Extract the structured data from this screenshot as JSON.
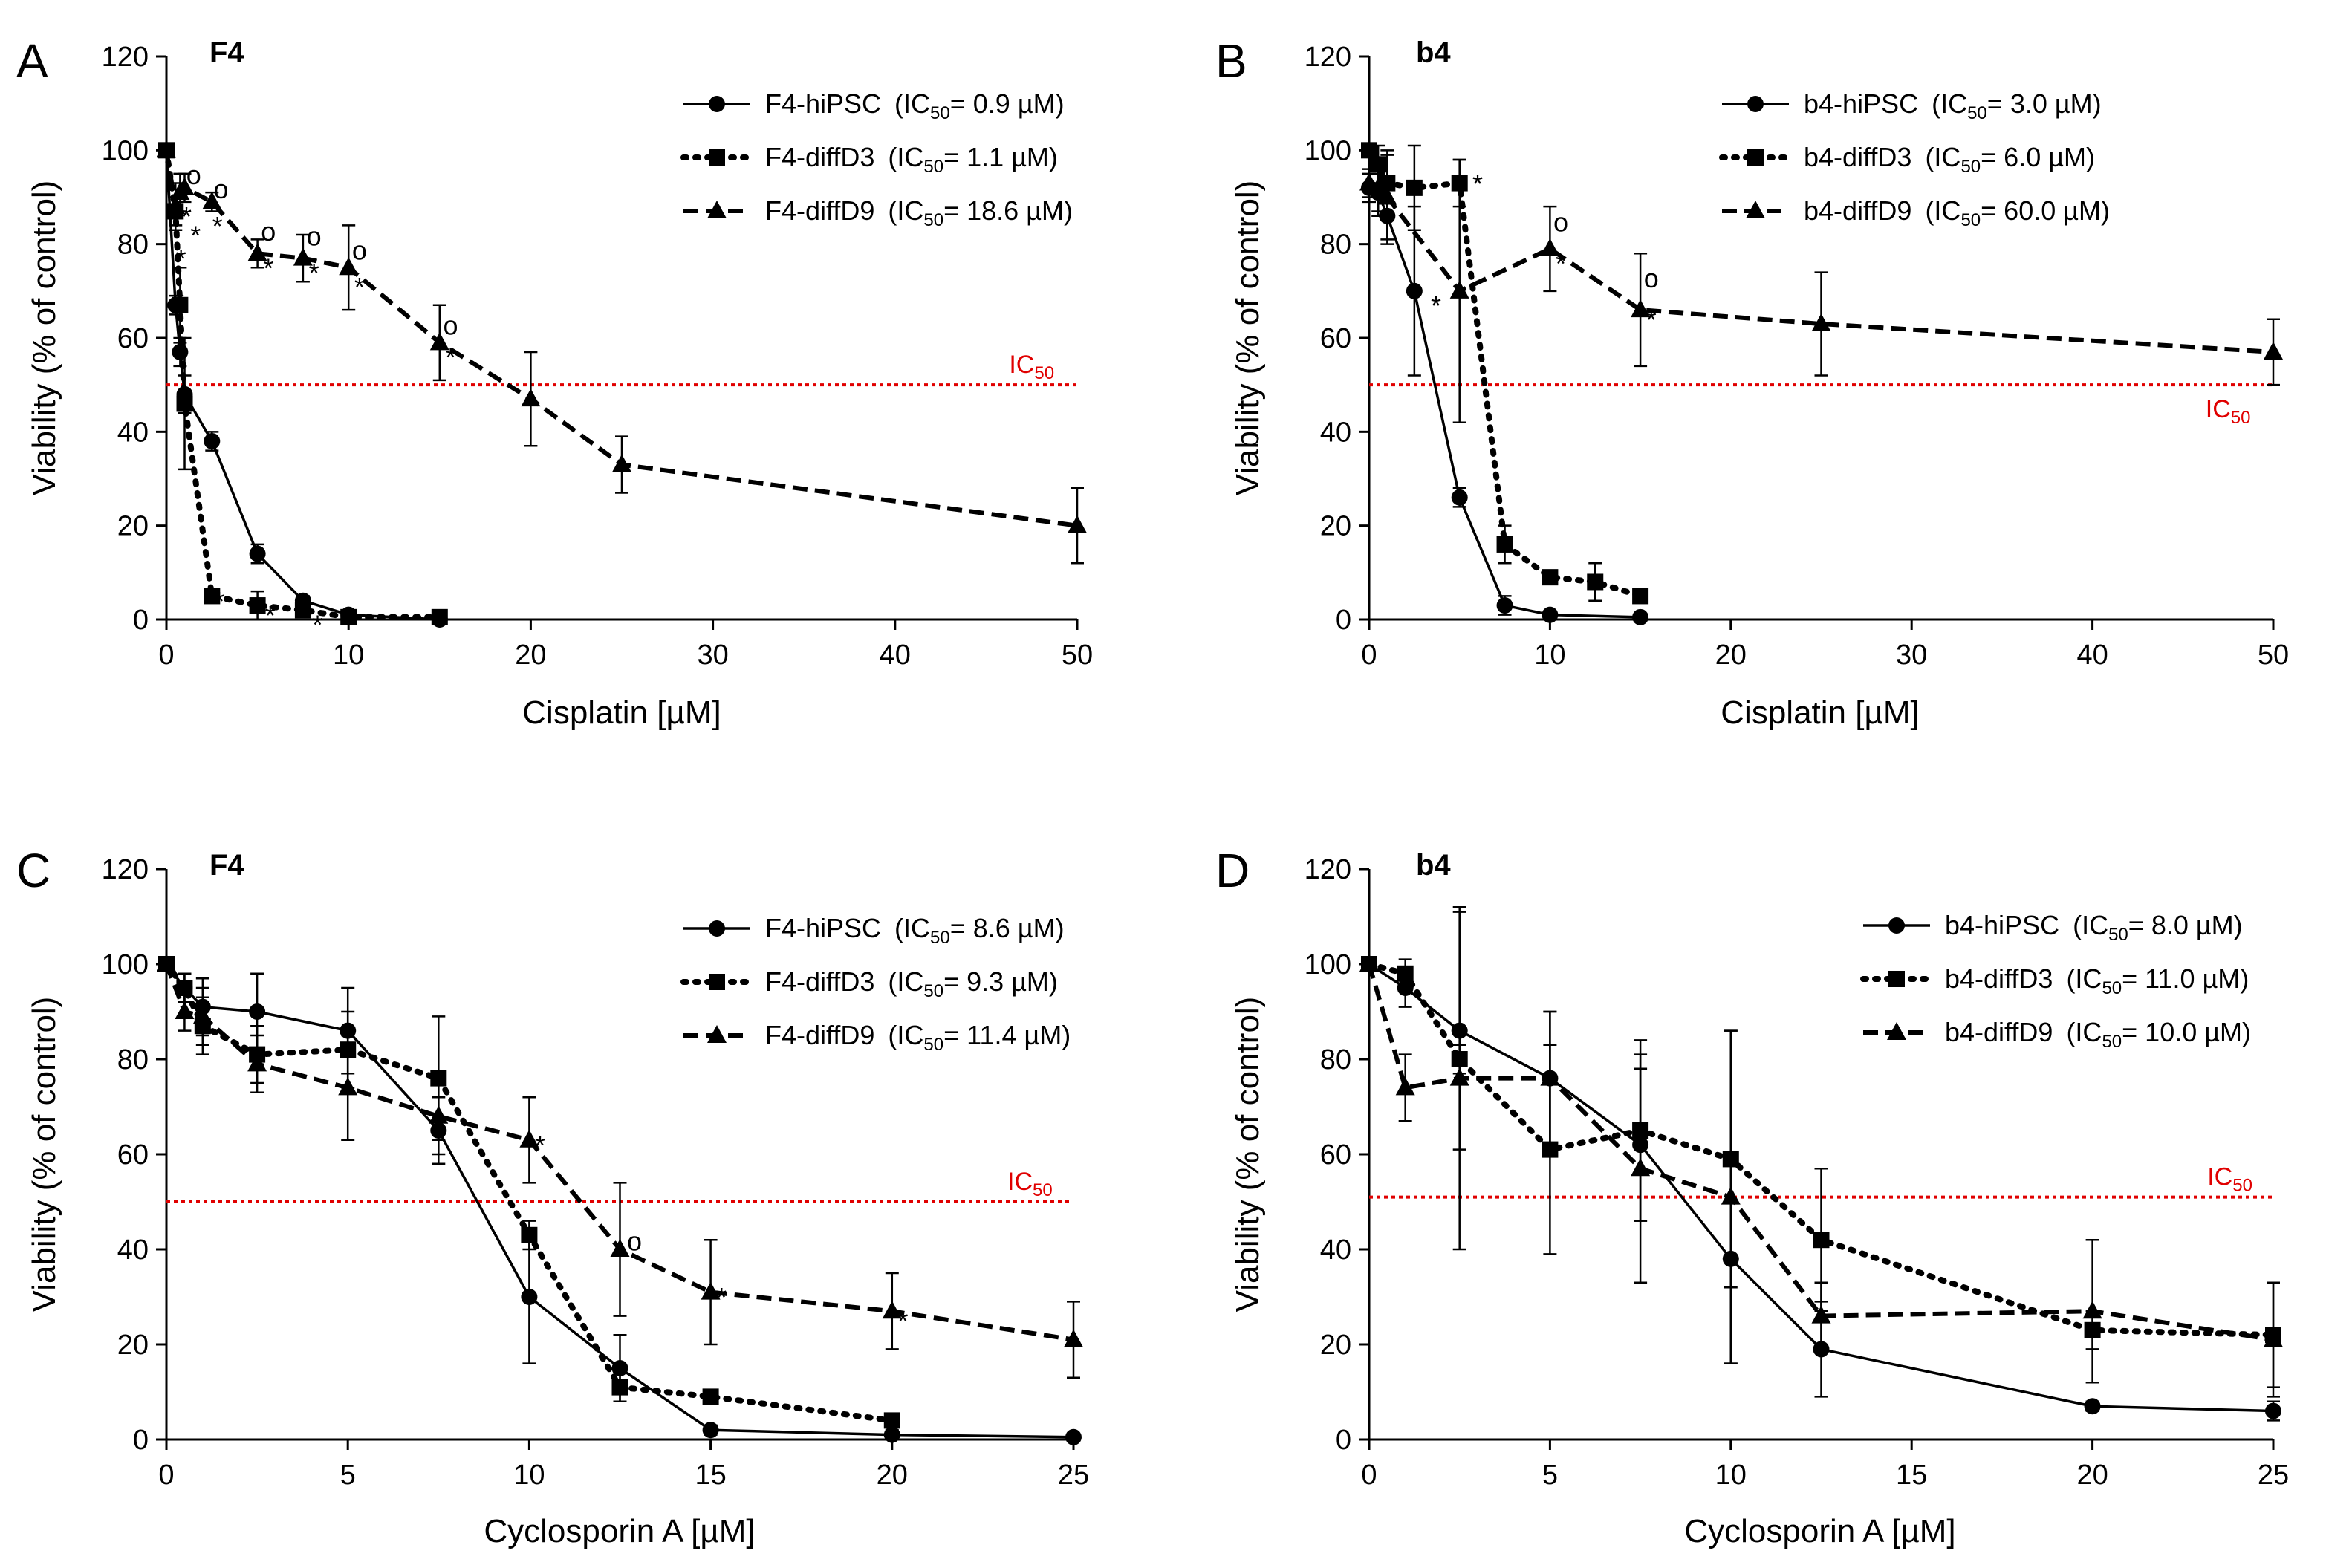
{
  "chart_data": [
    {
      "panel": "A",
      "type": "line",
      "title": "F4",
      "xlabel": "Cisplatin [µM]",
      "ylabel": "Viability (% of control)",
      "xlim": [
        0,
        50
      ],
      "ylim": [
        0,
        120
      ],
      "xticks": [
        0,
        10,
        20,
        30,
        40,
        50
      ],
      "yticks": [
        0,
        20,
        40,
        60,
        80,
        100,
        120
      ],
      "grid": false,
      "legend_position": "top-right",
      "threshold": {
        "y": 50,
        "label": "IC",
        "sub": "50",
        "label_x": 47.5,
        "label_side": "above"
      },
      "series": [
        {
          "name": "F4-hiPSC",
          "ic50_value": "0.9 µM",
          "marker": "circle",
          "line": "solid",
          "x": [
            0,
            0.5,
            0.75,
            1,
            2.5,
            5,
            7.5,
            10,
            15
          ],
          "y": [
            100,
            67,
            57,
            48,
            38,
            14,
            4,
            1,
            0
          ],
          "err": [
            0,
            2,
            3,
            4,
            2,
            2,
            1,
            1,
            0
          ]
        },
        {
          "name": "F4-diffD3",
          "ic50_value": "1.1 µM",
          "marker": "square",
          "line": "dotted",
          "x": [
            0,
            0.5,
            0.75,
            1,
            2.5,
            5,
            7.5,
            10,
            15
          ],
          "y": [
            100,
            87,
            67,
            46,
            5,
            3,
            2,
            0.5,
            0.5
          ],
          "err": [
            0,
            3,
            8,
            14,
            1,
            3,
            1,
            0.5,
            0
          ]
        },
        {
          "name": "F4-diffD9",
          "ic50_value": "18.6 µM",
          "marker": "triangle",
          "line": "dashed",
          "x": [
            0,
            0.5,
            0.75,
            1,
            2.5,
            5,
            7.5,
            10,
            15,
            20,
            25,
            50
          ],
          "y": [
            100,
            88,
            91,
            92,
            89,
            78,
            77,
            75,
            59,
            47,
            33,
            20
          ],
          "err": [
            0,
            5,
            4,
            3,
            2,
            3,
            5,
            9,
            8,
            10,
            6,
            8
          ]
        }
      ],
      "annotations": [
        {
          "text": "*",
          "x": 0.7,
          "y": 70
        },
        {
          "text": "*",
          "x": 0.8,
          "y": 79
        },
        {
          "text": "*",
          "x": 1.1,
          "y": 88
        },
        {
          "text": "*",
          "x": 1.6,
          "y": 84
        },
        {
          "text": "*",
          "x": 2.8,
          "y": 86
        },
        {
          "text": "*",
          "x": 5.6,
          "y": 77
        },
        {
          "text": "*",
          "x": 8.1,
          "y": 76
        },
        {
          "text": "*",
          "x": 10.6,
          "y": 73
        },
        {
          "text": "*",
          "x": 15.6,
          "y": 58
        },
        {
          "text": "*",
          "x": 2.9,
          "y": 6
        },
        {
          "text": "*",
          "x": 5.7,
          "y": 3
        },
        {
          "text": "*",
          "x": 8.3,
          "y": 1
        },
        {
          "text": "o",
          "x": 1.5,
          "y": 94
        },
        {
          "text": "o",
          "x": 3.0,
          "y": 91
        },
        {
          "text": "o",
          "x": 5.6,
          "y": 82
        },
        {
          "text": "o",
          "x": 8.1,
          "y": 81
        },
        {
          "text": "o",
          "x": 10.6,
          "y": 78
        },
        {
          "text": "o",
          "x": 15.6,
          "y": 62
        }
      ]
    },
    {
      "panel": "B",
      "type": "line",
      "title": "b4",
      "xlabel": "Cisplatin [µM]",
      "ylabel": "Viability (% of control)",
      "xlim": [
        0,
        50
      ],
      "ylim": [
        0,
        120
      ],
      "xticks": [
        0,
        10,
        20,
        30,
        40,
        50
      ],
      "yticks": [
        0,
        20,
        40,
        60,
        80,
        100,
        120
      ],
      "grid": false,
      "legend_position": "top-right",
      "threshold": {
        "y": 50,
        "label": "IC",
        "sub": "50",
        "label_x": 47.5,
        "label_side": "below"
      },
      "series": [
        {
          "name": "b4-hiPSC",
          "ic50_value": "3.0 µM",
          "marker": "circle",
          "line": "solid",
          "x": [
            0,
            0.5,
            1,
            2.5,
            5,
            7.5,
            10,
            15
          ],
          "y": [
            92,
            91,
            86,
            70,
            26,
            3,
            1,
            0.5
          ],
          "err": [
            3,
            4,
            6,
            18,
            2,
            2,
            0.5,
            0.5
          ]
        },
        {
          "name": "b4-diffD3",
          "ic50_value": "6.0 µM",
          "marker": "square",
          "line": "dotted",
          "x": [
            0,
            0.5,
            1,
            2.5,
            5,
            7.5,
            10,
            12.5,
            15
          ],
          "y": [
            100,
            97,
            93,
            92,
            93,
            16,
            9,
            8,
            5
          ],
          "err": [
            0,
            4,
            7,
            9,
            5,
            4,
            1,
            4,
            1
          ]
        },
        {
          "name": "b4-diffD9",
          "ic50_value": "60.0 µM",
          "marker": "triangle",
          "line": "dashed",
          "x": [
            0,
            0.5,
            1,
            5,
            10,
            15,
            25,
            50
          ],
          "y": [
            93,
            92,
            90,
            70,
            79,
            66,
            63,
            57
          ],
          "err": [
            3,
            6,
            9,
            28,
            9,
            12,
            11,
            7
          ]
        }
      ],
      "annotations": [
        {
          "text": "*",
          "x": 3.7,
          "y": 69
        },
        {
          "text": "*",
          "x": 6.0,
          "y": 95
        },
        {
          "text": "*",
          "x": 10.6,
          "y": 78
        },
        {
          "text": "*",
          "x": 15.6,
          "y": 66
        },
        {
          "text": "o",
          "x": 10.6,
          "y": 84
        },
        {
          "text": "o",
          "x": 15.6,
          "y": 72
        }
      ]
    },
    {
      "panel": "C",
      "type": "line",
      "title": "F4",
      "xlabel": "Cyclosporin A [µM]",
      "ylabel": "Viability (% of control)",
      "xlim": [
        0,
        25
      ],
      "ylim": [
        0,
        120
      ],
      "xticks": [
        0,
        5,
        10,
        15,
        20,
        25
      ],
      "yticks": [
        0,
        20,
        40,
        60,
        80,
        100,
        120
      ],
      "grid": false,
      "legend_position": "top-right",
      "threshold": {
        "y": 50,
        "label": "IC",
        "sub": "50",
        "label_x": 23.8,
        "label_side": "above"
      },
      "series": [
        {
          "name": "F4-hiPSC",
          "ic50_value": "8.6 µM",
          "marker": "circle",
          "line": "solid",
          "x": [
            0,
            0.5,
            1,
            2.5,
            5,
            7.5,
            10,
            12.5,
            15,
            20,
            25
          ],
          "y": [
            100,
            95,
            91,
            90,
            86,
            65,
            30,
            15,
            2,
            1,
            0.5
          ],
          "err": [
            0,
            3,
            6,
            8,
            9,
            7,
            14,
            7,
            1,
            1,
            0.5
          ]
        },
        {
          "name": "F4-diffD3",
          "ic50_value": "9.3 µM",
          "marker": "square",
          "line": "dotted",
          "x": [
            0,
            0.5,
            1,
            2.5,
            5,
            7.5,
            10,
            12.5,
            15,
            20
          ],
          "y": [
            100,
            95,
            87,
            81,
            82,
            76,
            43,
            11,
            9,
            4
          ],
          "err": [
            0,
            3,
            6,
            6,
            8,
            13,
            3,
            3,
            1,
            1
          ]
        },
        {
          "name": "F4-diffD9",
          "ic50_value": "11.4 µM",
          "marker": "triangle",
          "line": "dashed",
          "x": [
            0,
            0.5,
            1,
            2.5,
            5,
            7.5,
            10,
            12.5,
            15,
            20,
            25
          ],
          "y": [
            100,
            90,
            89,
            79,
            74,
            68,
            63,
            40,
            31,
            27,
            21
          ],
          "err": [
            0,
            4,
            6,
            6,
            11,
            8,
            9,
            14,
            11,
            8,
            8
          ]
        }
      ],
      "annotations": [
        {
          "text": "*",
          "x": 10.3,
          "y": 64
        },
        {
          "text": "*",
          "x": 15.3,
          "y": 32
        },
        {
          "text": "*",
          "x": 20.3,
          "y": 27
        },
        {
          "text": "o",
          "x": 12.9,
          "y": 41
        }
      ]
    },
    {
      "panel": "D",
      "type": "line",
      "title": "b4",
      "xlabel": "Cyclosporin A [µM]",
      "ylabel": "Viability (% of control)",
      "xlim": [
        0,
        25
      ],
      "ylim": [
        0,
        120
      ],
      "xticks": [
        0,
        5,
        10,
        15,
        20,
        25
      ],
      "yticks": [
        0,
        20,
        40,
        60,
        80,
        100,
        120
      ],
      "grid": false,
      "legend_position": "top-right",
      "threshold": {
        "y": 51,
        "label": "IC",
        "sub": "50",
        "label_x": 23.8,
        "label_side": "above"
      },
      "series": [
        {
          "name": "b4-hiPSC",
          "ic50_value": "8.0 µM",
          "marker": "circle",
          "line": "solid",
          "x": [
            0,
            1,
            2.5,
            5,
            7.5,
            10,
            12.5,
            20,
            25
          ],
          "y": [
            100,
            95,
            86,
            76,
            62,
            38,
            19,
            7,
            6
          ],
          "err": [
            0,
            4,
            25,
            14,
            16,
            22,
            10,
            1,
            2
          ]
        },
        {
          "name": "b4-diffD3",
          "ic50_value": "11.0 µM",
          "marker": "square",
          "line": "dotted",
          "x": [
            0,
            1,
            2.5,
            5,
            7.5,
            10,
            12.5,
            20,
            25
          ],
          "y": [
            100,
            98,
            80,
            61,
            65,
            59,
            42,
            23,
            22
          ],
          "err": [
            0,
            3,
            3,
            22,
            19,
            27,
            15,
            4,
            11
          ]
        },
        {
          "name": "b4-diffD9",
          "ic50_value": "10.0 µM",
          "marker": "triangle",
          "line": "dashed",
          "x": [
            0,
            1,
            2.5,
            5,
            7.5,
            10,
            12.5,
            20,
            25
          ],
          "y": [
            100,
            74,
            76,
            76,
            57,
            51,
            26,
            27,
            21
          ],
          "err": [
            0,
            7,
            36,
            14,
            24,
            35,
            7,
            15,
            12
          ]
        }
      ],
      "annotations": []
    }
  ]
}
